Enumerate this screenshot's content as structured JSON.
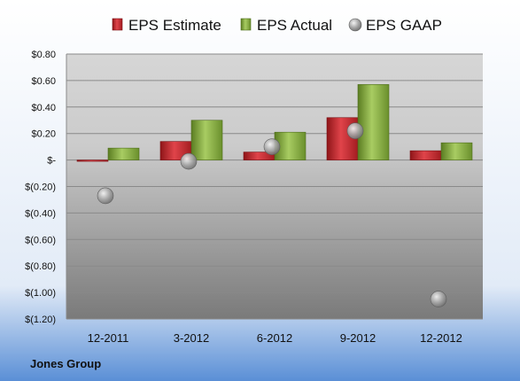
{
  "chart_data": {
    "type": "bar",
    "categories": [
      "12-2011",
      "3-2012",
      "6-2012",
      "9-2012",
      "12-2012"
    ],
    "series": [
      {
        "name": "EPS Estimate",
        "type": "bar",
        "color": "#c0262b",
        "values": [
          -0.01,
          0.14,
          0.06,
          0.32,
          0.07
        ]
      },
      {
        "name": "EPS Actual",
        "type": "bar",
        "color": "#7fa53a",
        "values": [
          0.09,
          0.3,
          0.21,
          0.57,
          0.13
        ]
      },
      {
        "name": "EPS GAAP",
        "type": "scatter",
        "color": "#a8a8a8",
        "values": [
          -0.27,
          -0.01,
          0.1,
          0.22,
          -1.05
        ]
      }
    ],
    "yticks": [
      "$0.80",
      "$0.60",
      "$0.40",
      "$0.20",
      "$-",
      "$(0.20)",
      "$(0.40)",
      "$(0.60)",
      "$(0.80)",
      "$(1.00)",
      "$(1.20)"
    ],
    "ylim": [
      -1.2,
      0.8
    ],
    "grid": true,
    "legend": "top",
    "footer": "Jones Group"
  }
}
